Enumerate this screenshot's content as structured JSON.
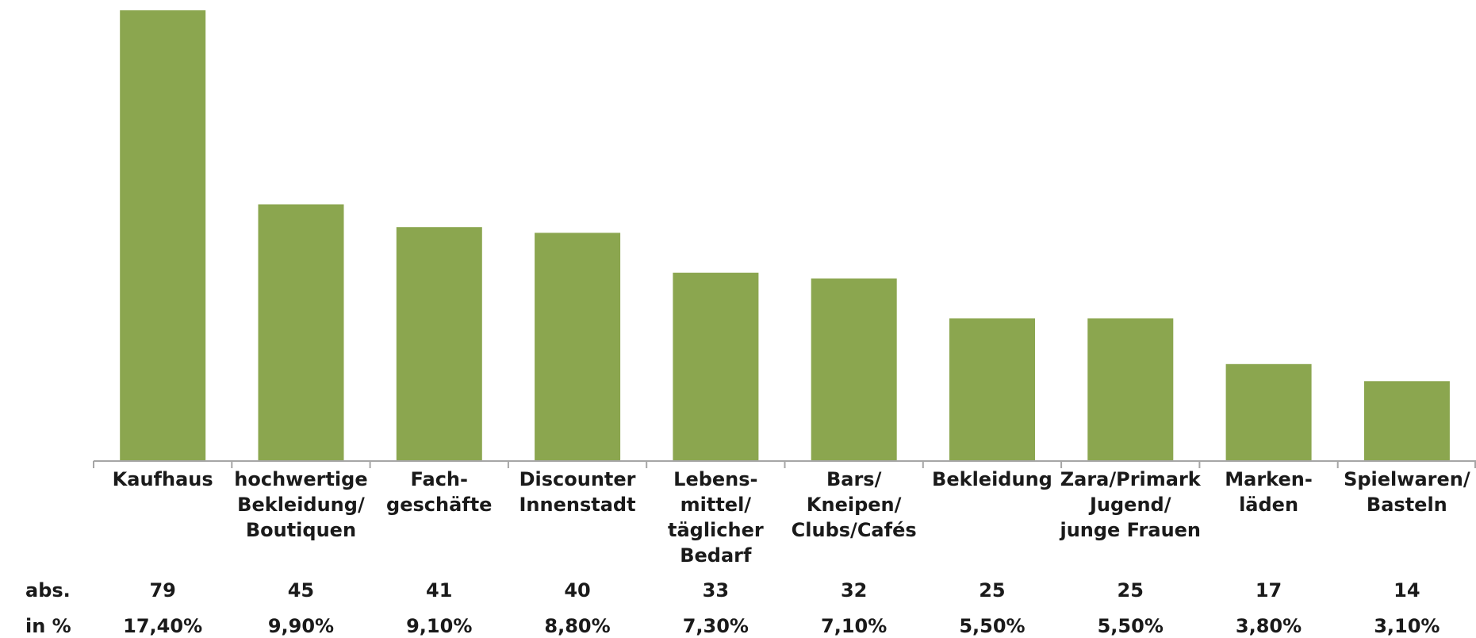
{
  "chart_data": {
    "type": "bar",
    "title": "",
    "xlabel": "",
    "ylabel": "",
    "ylim": [
      0,
      80
    ],
    "grid": false,
    "legend": "none",
    "bar_color": "#8ba64f",
    "axis_color": "#a6a6a6",
    "categories": [
      [
        "Kaufhaus"
      ],
      [
        "hochwertige",
        "Bekleidung/",
        "Boutiquen"
      ],
      [
        "Fach-",
        "geschäfte"
      ],
      [
        "Discounter",
        "Innenstadt"
      ],
      [
        "Lebens-",
        "mittel/",
        "täglicher",
        "Bedarf"
      ],
      [
        "Bars/",
        "Kneipen/",
        "Clubs/Cafés"
      ],
      [
        "Bekleidung"
      ],
      [
        "Zara/Primark",
        "Jugend/",
        "junge Frauen"
      ],
      [
        "Marken-",
        "läden"
      ],
      [
        "Spielwaren/",
        "Basteln"
      ]
    ],
    "values": [
      79,
      45,
      41,
      40,
      33,
      32,
      25,
      25,
      17,
      14
    ],
    "rows": [
      {
        "label": "abs.",
        "values": [
          "79",
          "45",
          "41",
          "40",
          "33",
          "32",
          "25",
          "25",
          "17",
          "14"
        ]
      },
      {
        "label": "in %",
        "values": [
          "17,40%",
          "9,90%",
          "9,10%",
          "8,80%",
          "7,30%",
          "7,10%",
          "5,50%",
          "5,50%",
          "3,80%",
          "3,10%"
        ]
      }
    ]
  }
}
